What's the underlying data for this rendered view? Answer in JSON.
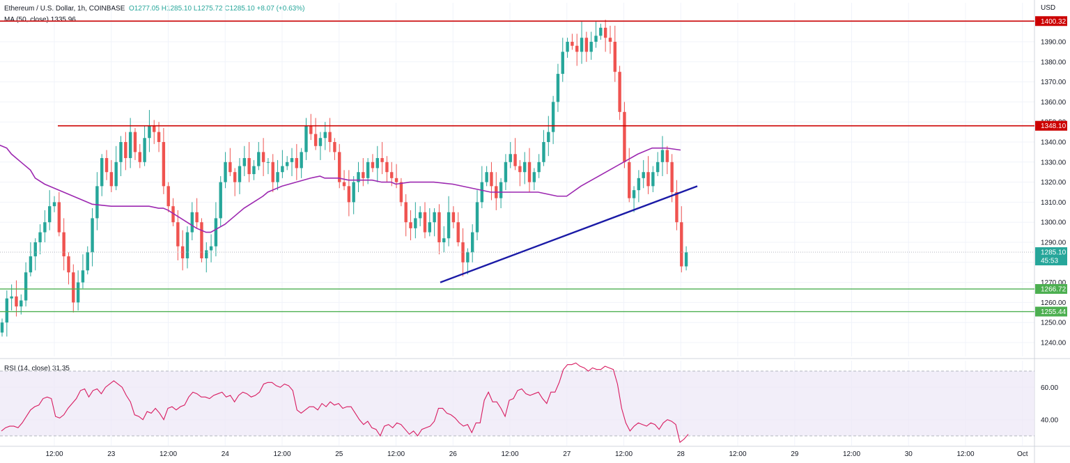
{
  "header": {
    "symbol": "Ethereum / U.S. Dollar, 1h, COINBASE",
    "open": "O1277.05",
    "high": "H1285.10",
    "low": "L1275.72",
    "close": "C1285.10",
    "change": "+8.07 (+0.63%)"
  },
  "ma_legend": {
    "label": "MA (50, close)",
    "value": "1335.96"
  },
  "rsi_legend": {
    "label": "RSI (14, close)",
    "value": "31.35"
  },
  "currency": "USD",
  "price_badges": {
    "resistance_top": "1400.32",
    "resistance_mid": "1348.10",
    "last_price": "1285.10",
    "countdown": "45:53",
    "support_1": "1266.72",
    "support_2": "1255.44"
  },
  "colors": {
    "up": "#26a69a",
    "down": "#ef5350",
    "ma": "#9c27b0",
    "resistance": "#cc0000",
    "support": "#4caf50",
    "trendline": "#1a1aa6",
    "rsi_band": "#ede7f6"
  },
  "chart_data": [
    {
      "type": "candlestick",
      "title": "Ethereum / U.S. Dollar, 1h, COINBASE",
      "ylabel": "USD",
      "ylim": [
        1234,
        1402
      ],
      "y_ticks": [
        1240,
        1250,
        1260,
        1270,
        1280,
        1290,
        1300,
        1310,
        1320,
        1330,
        1340,
        1350,
        1360,
        1370,
        1380,
        1390
      ],
      "x_ticks": [
        "12:00",
        "23",
        "12:00",
        "24",
        "12:00",
        "25",
        "12:00",
        "26",
        "12:00",
        "27",
        "12:00",
        "28",
        "12:00",
        "29",
        "12:00",
        "30",
        "12:00",
        "Oct"
      ],
      "horizontal_levels": [
        {
          "value": 1400.32,
          "role": "resistance"
        },
        {
          "value": 1348.1,
          "role": "resistance"
        },
        {
          "value": 1266.72,
          "role": "support"
        },
        {
          "value": 1255.44,
          "role": "support"
        }
      ],
      "trendline": {
        "from": [
          "25 20:00",
          1270
        ],
        "to": [
          "28 03:00",
          1318
        ]
      },
      "ma_points": [
        [
          1337,
          1337
        ],
        [
          1334,
          1334
        ],
        [
          1330,
          1330
        ],
        [
          1326,
          1326
        ],
        [
          1322,
          1322
        ],
        [
          1319,
          1319
        ],
        [
          1317,
          1317
        ],
        [
          1315,
          1315
        ],
        [
          1313,
          1313
        ],
        [
          1311,
          1311
        ],
        [
          1309,
          1309
        ],
        [
          1308,
          1308
        ],
        [
          1308,
          1308
        ],
        [
          1308,
          1308
        ],
        [
          1308,
          1308
        ],
        [
          1308,
          1308
        ],
        [
          1307,
          1307
        ],
        [
          1307,
          1307
        ],
        [
          1306,
          1306
        ],
        [
          1303,
          1303
        ],
        [
          1300,
          1300
        ],
        [
          1297,
          1297
        ],
        [
          1295,
          1295
        ],
        [
          1295,
          1295
        ],
        [
          1299,
          1299
        ],
        [
          1303,
          1303
        ],
        [
          1307,
          1307
        ],
        [
          1310,
          1310
        ],
        [
          1313,
          1313
        ],
        [
          1315,
          1315
        ],
        [
          1317,
          1317
        ],
        [
          1318,
          1318
        ],
        [
          1320,
          1320
        ],
        [
          1322,
          1322
        ],
        [
          1323,
          1323
        ],
        [
          1322,
          1322
        ],
        [
          1322,
          1322
        ],
        [
          1321,
          1321
        ],
        [
          1321,
          1321
        ],
        [
          1321,
          1321
        ],
        [
          1320,
          1320
        ],
        [
          1320,
          1320
        ],
        [
          1319,
          1319
        ],
        [
          1320,
          1320
        ],
        [
          1320,
          1320
        ],
        [
          1320,
          1320
        ],
        [
          1319,
          1319
        ],
        [
          1318,
          1318
        ],
        [
          1317,
          1317
        ],
        [
          1315,
          1315
        ],
        [
          1315,
          1315
        ],
        [
          1315,
          1315
        ],
        [
          1315,
          1315
        ],
        [
          1315,
          1315
        ],
        [
          1314,
          1314
        ],
        [
          1313,
          1313
        ],
        [
          1313,
          1313
        ],
        [
          1318,
          1318
        ],
        [
          1322,
          1322
        ],
        [
          1326,
          1326
        ],
        [
          1330,
          1330
        ],
        [
          1334,
          1334
        ],
        [
          1337,
          1337
        ],
        [
          1337,
          1337
        ],
        [
          1337,
          1337
        ]
      ],
      "ma_x": [
        "22 00:00",
        "22 02:00",
        "22 03:00",
        "22 05:00",
        "22 07:00",
        "22 08:00",
        "22 10:00",
        "22 12:00",
        "22 14:00",
        "22 17:00",
        "22 19:00",
        "22 20:00",
        "23 00:00",
        "23 03:00",
        "23 06:00",
        "23 08:00",
        "23 10:00",
        "23 11:00",
        "23 12:00",
        "23 14:00",
        "23 16:00",
        "23 18:00",
        "23 20:00",
        "23 21:00",
        "24 00:00",
        "24 02:00",
        "24 04:00",
        "24 06:00",
        "24 08:00",
        "24 09:00",
        "24 11:00",
        "24 12:00",
        "24 15:00",
        "24 18:00",
        "24 20:00",
        "24 21:00",
        "25 00:00",
        "25 02:00",
        "25 05:00",
        "25 07:00",
        "25 09:00",
        "25 11:00",
        "25 12:00",
        "25 15:00",
        "25 18:00",
        "25 20:00",
        "26 00:00",
        "26 02:00",
        "26 04:00",
        "26 08:00",
        "26 10:00",
        "26 13:00",
        "26 16:00",
        "26 18:00",
        "26 20:00",
        "26 22:00",
        "27 00:00",
        "27 03:00",
        "27 06:00",
        "27 09:00",
        "27 12:00",
        "27 15:00",
        "27 18:00",
        "27 21:00",
        "28 00:00"
      ],
      "ma_values": [
        1339,
        1337,
        1334,
        1330,
        1326,
        1322,
        1319,
        1317,
        1315,
        1312,
        1310,
        1309,
        1308,
        1308,
        1308,
        1308,
        1307,
        1307,
        1306,
        1303,
        1300,
        1297,
        1295,
        1295,
        1299,
        1303,
        1307,
        1310,
        1313,
        1315,
        1317,
        1318,
        1320,
        1322,
        1323,
        1322,
        1322,
        1321,
        1321,
        1321,
        1320,
        1320,
        1319,
        1320,
        1320,
        1320,
        1319,
        1318,
        1317,
        1315,
        1315,
        1315,
        1315,
        1315,
        1314,
        1313,
        1313,
        1318,
        1322,
        1326,
        1330,
        1334,
        1337,
        1337,
        1336
      ]
    },
    {
      "type": "line",
      "title": "RSI (14, close)",
      "ylim": [
        25,
        78
      ],
      "y_ticks": [
        40,
        60
      ],
      "band": [
        30,
        70
      ],
      "series": [
        {
          "values": [
            33,
            35,
            36,
            36,
            35,
            38,
            42,
            46,
            48,
            49,
            53,
            54,
            53,
            42,
            41,
            43,
            47,
            50,
            53,
            58,
            59,
            54,
            58,
            59,
            56,
            60,
            62,
            64,
            62,
            60,
            55,
            51,
            43,
            42,
            40,
            45,
            44,
            47,
            44,
            40,
            47,
            48,
            46,
            48,
            49,
            54,
            57,
            56,
            54,
            54,
            53,
            55,
            56,
            57,
            54,
            55,
            51,
            55,
            57,
            56,
            54,
            55,
            57,
            62,
            63,
            63,
            61,
            60,
            62,
            61,
            58,
            46,
            44,
            46,
            48,
            48,
            46,
            50,
            48,
            51,
            49,
            50,
            47,
            48,
            48,
            44,
            40,
            37,
            39,
            35,
            34,
            30,
            36,
            37,
            35,
            38,
            37,
            34,
            31,
            33,
            30,
            34,
            35,
            36,
            39,
            47,
            47,
            44,
            43,
            41,
            38,
            36,
            37,
            32,
            38,
            38,
            52,
            57,
            51,
            51,
            47,
            42,
            52,
            53,
            58,
            59,
            56,
            55,
            56,
            57,
            53,
            50,
            57,
            57,
            63,
            71,
            74,
            74,
            75,
            73,
            72,
            70,
            72,
            71,
            71,
            73,
            72,
            71,
            62,
            47,
            38,
            33,
            36,
            38,
            37,
            36,
            38,
            37,
            34,
            38,
            40,
            39,
            37,
            26,
            28,
            31
          ],
          "x_start": "21 23:00",
          "x_step_hours": 0.4
        }
      ]
    }
  ]
}
